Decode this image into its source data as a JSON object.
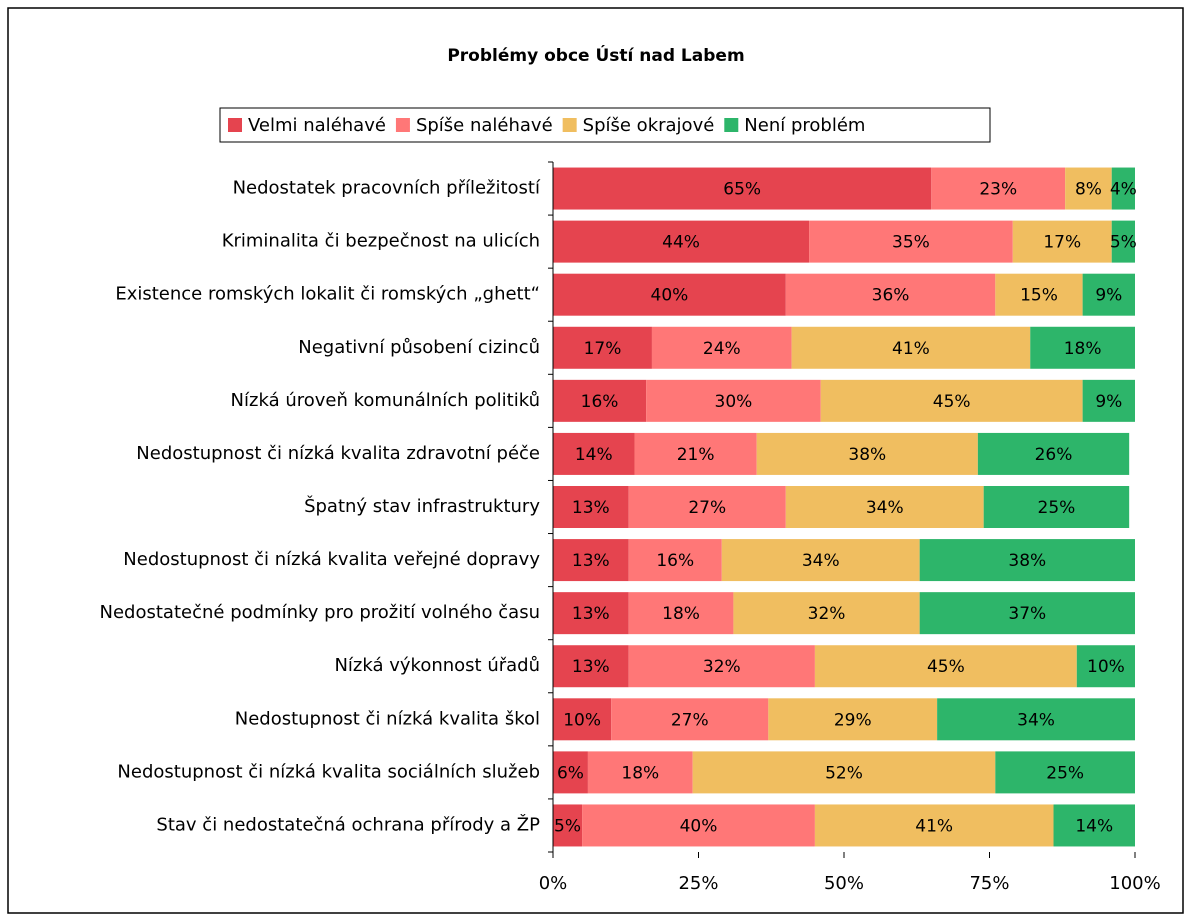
{
  "chart_data": {
    "type": "stacked_bar_horizontal",
    "title": "Problémy obce Ústí nad Labem",
    "categories": [
      "Nedostatek pracovních příležitostí",
      "Kriminalita či bezpečnost na ulicích",
      "Existence romských lokalit či romských „ghett“",
      "Negativní působení cizinců",
      "Nízká úroveň komunálních politiků",
      "Nedostupnost či nízká kvalita zdravotní péče",
      "Špatný stav infrastruktury",
      "Nedostupnost či nízká kvalita veřejné dopravy",
      "Nedostatečné podmínky pro prožití volného času",
      "Nízká výkonnost úřadů",
      "Nedostupnost či nízká kvalita škol",
      "Nedostupnost či nízká kvalita sociálních služeb",
      "Stav či nedostatečná ochrana přírody a ŽP"
    ],
    "series": [
      {
        "name": "Velmi naléhavé",
        "color": "#e5444f",
        "values": [
          65,
          44,
          40,
          17,
          16,
          14,
          13,
          13,
          13,
          13,
          10,
          6,
          5
        ],
        "value_labels": [
          "65%",
          "44%",
          "40%",
          "17%",
          "16%",
          "14%",
          "13%",
          "13%",
          "13%",
          "13%",
          "10%",
          "6%",
          "5%"
        ]
      },
      {
        "name": "Spíše naléhavé",
        "color": "#ff7777",
        "values": [
          23,
          35,
          36,
          24,
          30,
          21,
          27,
          16,
          18,
          32,
          27,
          18,
          40
        ],
        "value_labels": [
          "23%",
          "35%",
          "36%",
          "24%",
          "30%",
          "21%",
          "27%",
          "16%",
          "18%",
          "32%",
          "27%",
          "18%",
          "40%"
        ]
      },
      {
        "name": "Spíše okrajové",
        "color": "#f0be60",
        "values": [
          8,
          17,
          15,
          41,
          45,
          38,
          34,
          34,
          32,
          45,
          29,
          52,
          41
        ],
        "value_labels": [
          "8%",
          "17%",
          "15%",
          "41%",
          "45%",
          "38%",
          "34%",
          "34%",
          "32%",
          "45%",
          "29%",
          "52%",
          "41%"
        ]
      },
      {
        "name": "Není problém",
        "color": "#2db56a",
        "values": [
          4,
          5,
          9,
          18,
          9,
          26,
          25,
          38,
          37,
          10,
          34,
          25,
          14
        ],
        "value_labels": [
          "4%",
          "5%",
          "9%",
          "18%",
          "9%",
          "26%",
          "25%",
          "38%",
          "37%",
          "10%",
          "34%",
          "25%",
          "14%"
        ]
      }
    ],
    "xlim": [
      0,
      100
    ],
    "xticks": [
      {
        "value": 0,
        "label": "0%"
      },
      {
        "value": 25,
        "label": "25%"
      },
      {
        "value": 50,
        "label": "50%"
      },
      {
        "value": 75,
        "label": "75%"
      },
      {
        "value": 100,
        "label": "100%"
      }
    ],
    "legend": "top"
  }
}
